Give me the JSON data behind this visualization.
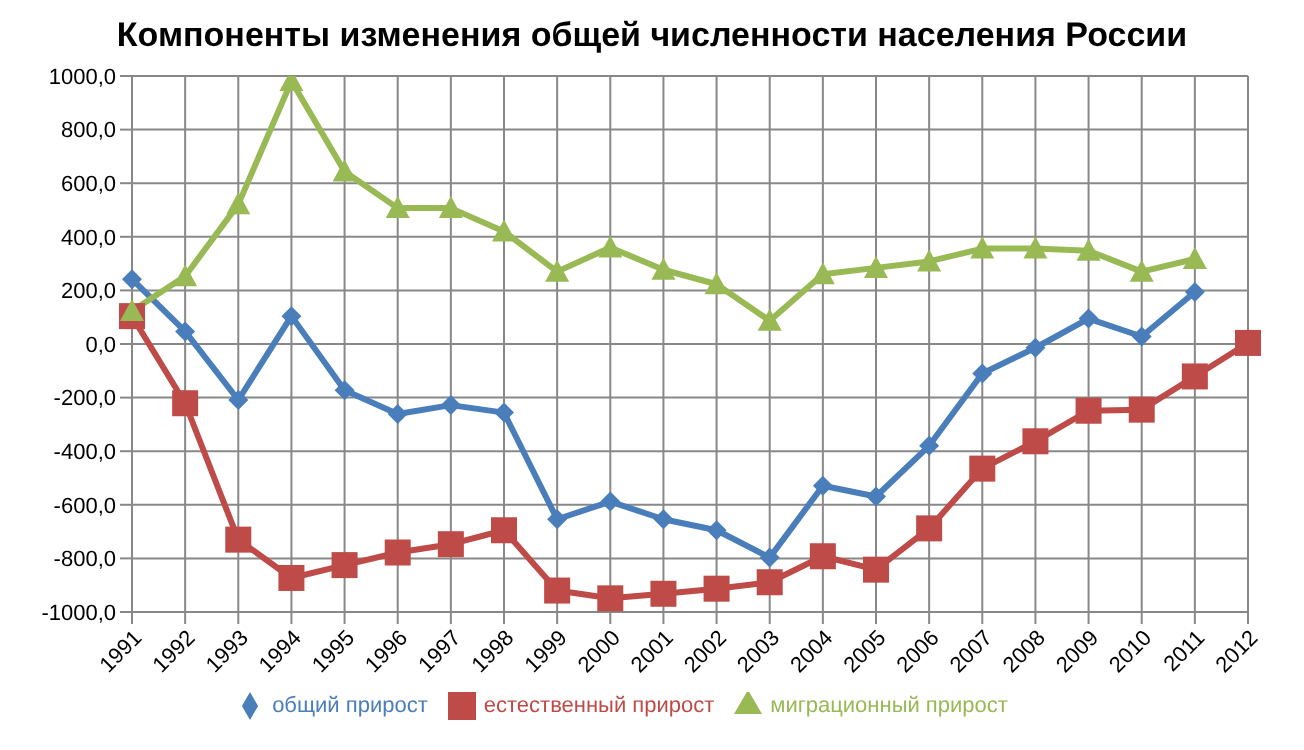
{
  "chart_data": {
    "type": "line",
    "title": "Компоненты изменения общей численности населения России",
    "categories": [
      "1991",
      "1992",
      "1993",
      "1994",
      "1995",
      "1996",
      "1997",
      "1998",
      "1999",
      "2000",
      "2001",
      "2002",
      "2003",
      "2004",
      "2005",
      "2006",
      "2007",
      "2008",
      "2009",
      "2010",
      "2011",
      "2012"
    ],
    "series": [
      {
        "name": "общий прирост",
        "color": "#4a7ebb",
        "marker": "diamond",
        "values": [
          242,
          47,
          -209,
          104,
          -173,
          -261,
          -228,
          -256,
          -654,
          -588,
          -654,
          -695,
          -797,
          -529,
          -569,
          -380,
          -110,
          -14,
          95,
          28,
          194,
          null
        ]
      },
      {
        "name": "естественный прирост",
        "color": "#be4b48",
        "marker": "square",
        "values": [
          104,
          -221,
          -730,
          -873,
          -825,
          -778,
          -747,
          -695,
          -920,
          -949,
          -932,
          -913,
          -889,
          -792,
          -842,
          -688,
          -465,
          -363,
          -249,
          -245,
          -121,
          4
        ]
      },
      {
        "name": "миграционный прирост",
        "color": "#98b954",
        "marker": "triangle",
        "values": [
          123,
          253,
          521,
          981,
          644,
          507,
          507,
          420,
          270,
          360,
          277,
          223,
          87,
          260,
          284,
          308,
          356,
          356,
          348,
          270,
          317,
          null
        ]
      }
    ],
    "ylim": [
      -1000,
      1000
    ],
    "yticks": [
      {
        "value": -1000,
        "label": "-1000,0"
      },
      {
        "value": -800,
        "label": "-800,0"
      },
      {
        "value": -600,
        "label": "-600,0"
      },
      {
        "value": -400,
        "label": "-400,0"
      },
      {
        "value": -200,
        "label": "-200,0"
      },
      {
        "value": 0,
        "label": "0,0"
      },
      {
        "value": 200,
        "label": "200,0"
      },
      {
        "value": 400,
        "label": "400,0"
      },
      {
        "value": 600,
        "label": "600,0"
      },
      {
        "value": 800,
        "label": "800,0"
      },
      {
        "value": 1000,
        "label": "1000,0"
      }
    ],
    "grid": true,
    "legend": "bottom"
  }
}
